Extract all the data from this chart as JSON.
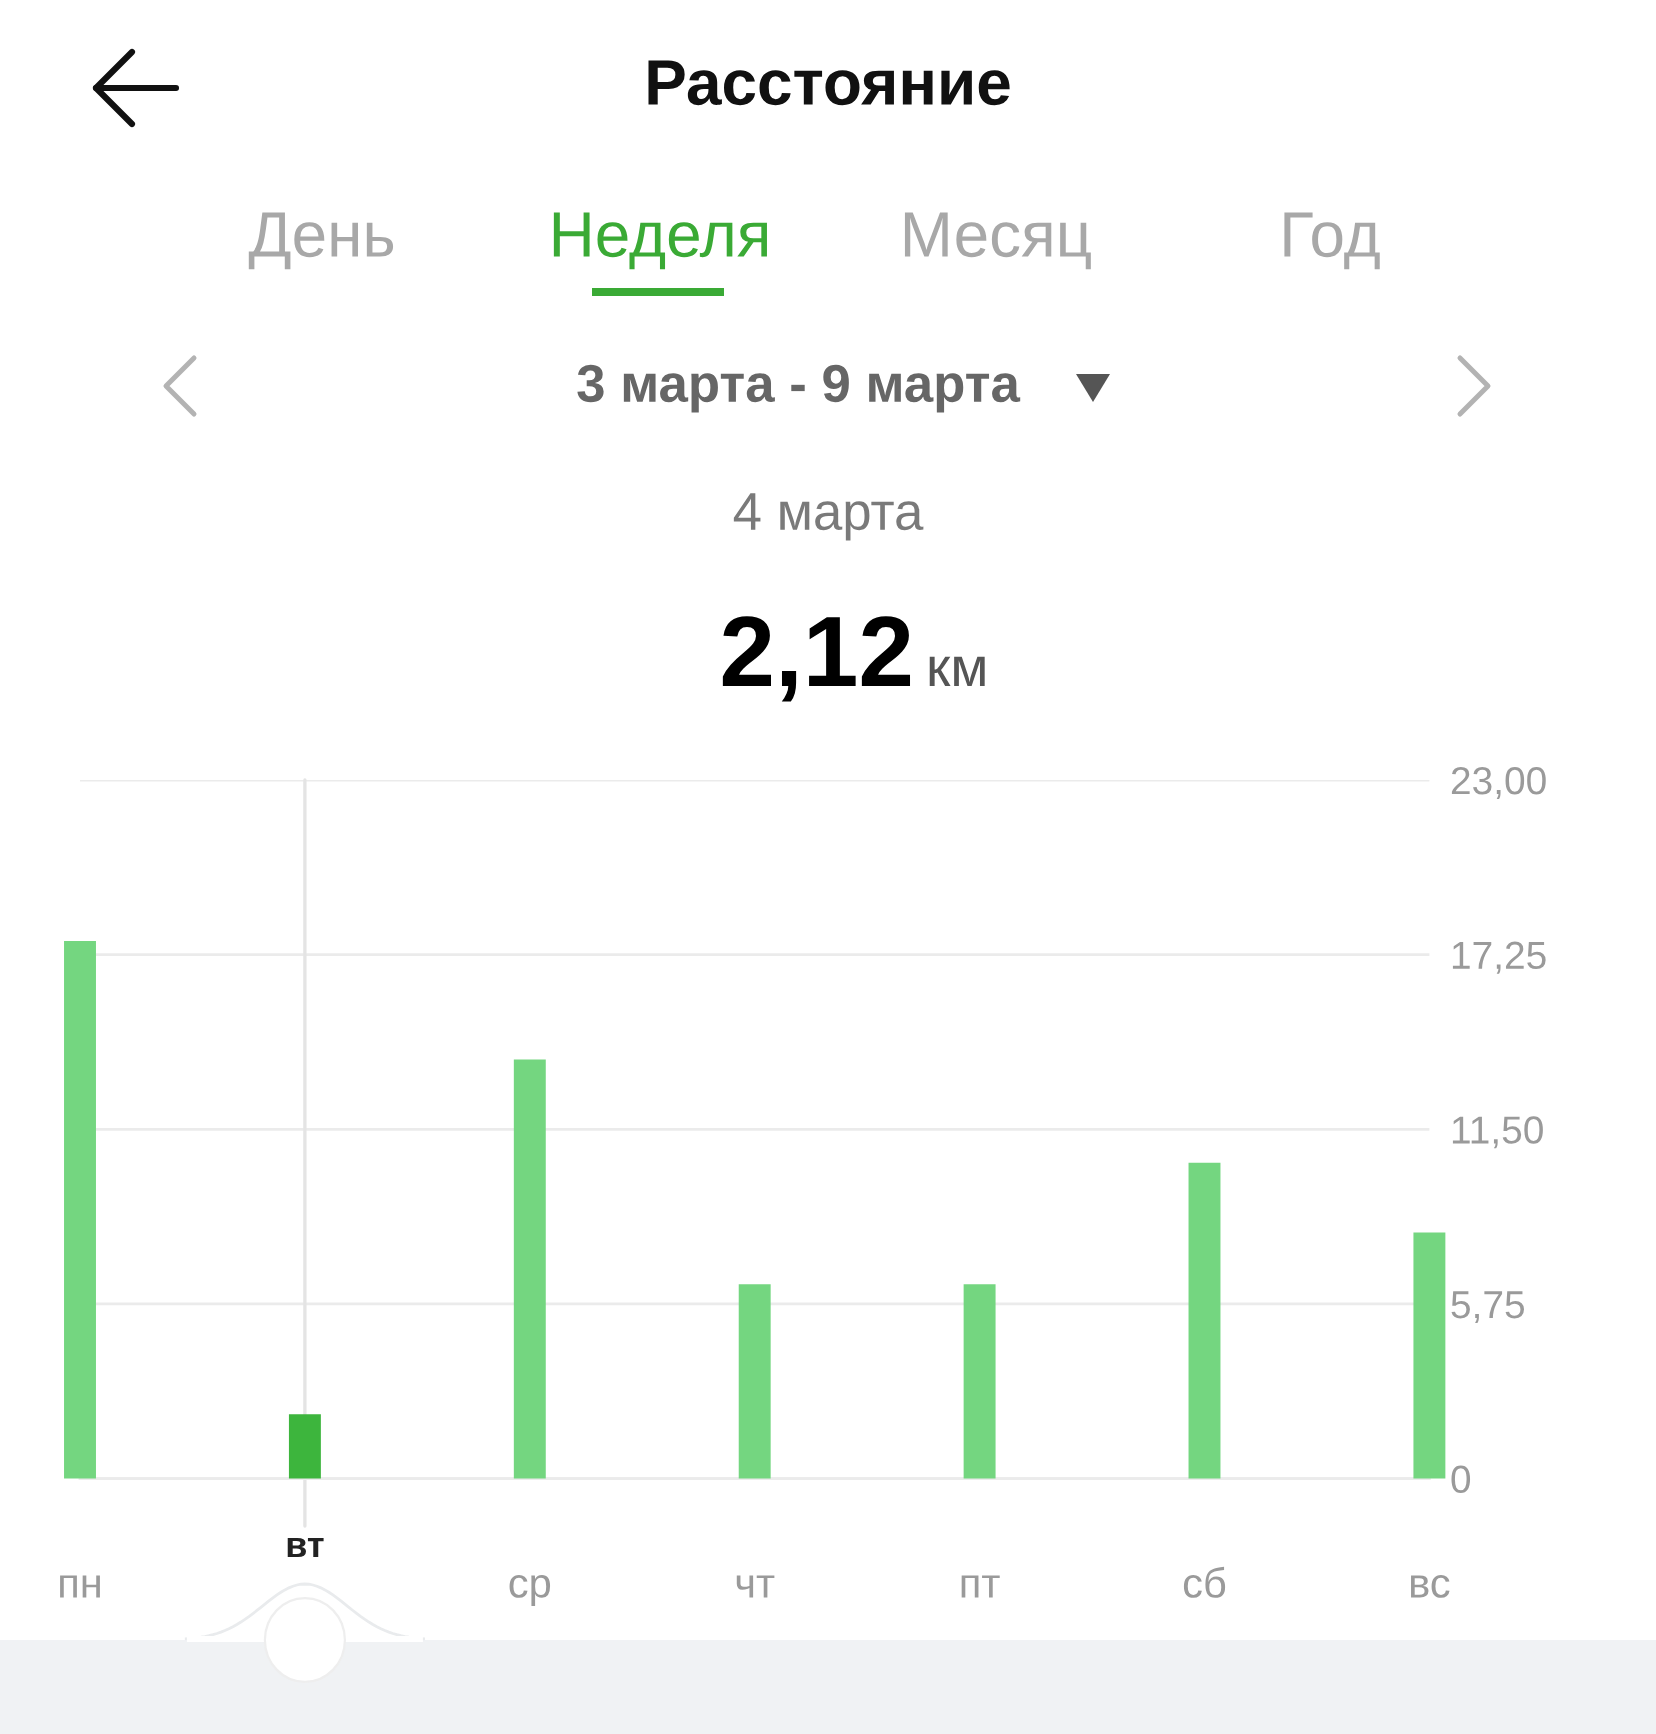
{
  "chart_data": {
    "type": "bar",
    "title": "Расстояние",
    "subtitle": "3 марта - 9 марта",
    "annotations": [
      "День",
      "Неделя",
      "Месяц",
      "Год",
      "4 марта",
      "2,12",
      "км"
    ],
    "categories": [
      "пн",
      "вт",
      "ср",
      "чт",
      "пт",
      "сб",
      "вс"
    ],
    "values": [
      17.7,
      2.12,
      13.8,
      6.4,
      6.4,
      10.4,
      8.1
    ],
    "colors": [
      "#74d680",
      "#3db53d",
      "#74d680",
      "#74d680",
      "#74d680",
      "#74d680",
      "#74d680"
    ],
    "ylim": [
      0,
      23
    ],
    "yticks": [
      0,
      {
        "value": 5.75,
        "label": "5,75"
      },
      {
        "value": 11.5,
        "label": "11,50"
      },
      {
        "value": 17.25,
        "label": "17,25"
      },
      {
        "value": 23,
        "label": "23,00"
      }
    ],
    "grid": "y",
    "ref_lines": [
      {
        "axis": "x",
        "value": "вт",
        "color": "#e4e4e4"
      }
    ]
  }
}
